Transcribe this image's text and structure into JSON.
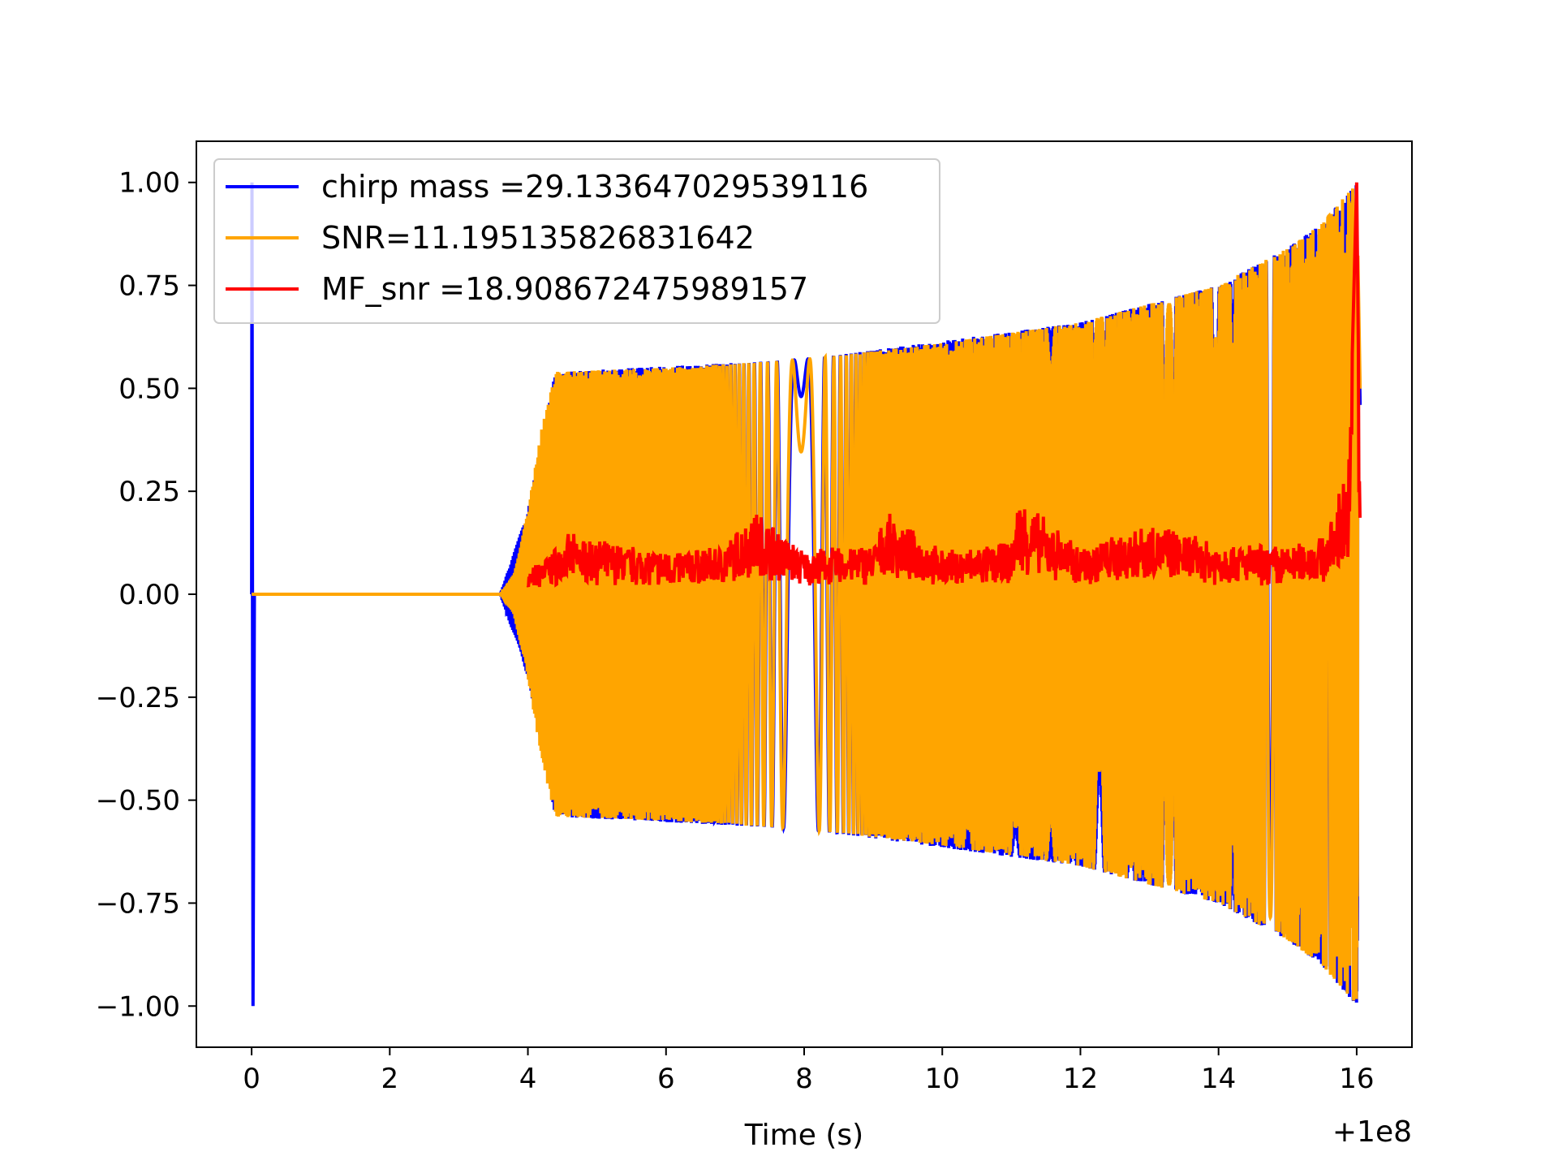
{
  "chart_data": {
    "type": "line",
    "title": "",
    "xlabel": "Time (s)",
    "ylabel": "",
    "x_offset_label": "+1e8",
    "xlim": [
      -0.8,
      16.8
    ],
    "ylim": [
      -1.1,
      1.1
    ],
    "x_ticks": [
      0,
      2,
      4,
      6,
      8,
      10,
      12,
      14,
      16
    ],
    "x_tick_labels": [
      "0",
      "2",
      "4",
      "6",
      "8",
      "10",
      "12",
      "14",
      "16"
    ],
    "y_ticks": [
      1.0,
      0.75,
      0.5,
      0.25,
      0.0,
      -0.25,
      -0.5,
      -0.75,
      -1.0
    ],
    "y_tick_labels": [
      "1.00",
      "0.75",
      "0.50",
      "0.25",
      "0.00",
      "−0.25",
      "−0.50",
      "−0.75",
      "−1.00"
    ],
    "grid": false,
    "legend_placement": "upper-left",
    "series": [
      {
        "name": "chirp mass =29.133647029539116",
        "color": "#0000ff",
        "kind": "chirp-template",
        "note_x": [
          0.0,
          0.02,
          0.04,
          3.6,
          4.0,
          4.4,
          8.0,
          12.0,
          14.0,
          15.0,
          15.5,
          16.0,
          16.05
        ],
        "envelope": [
          1.0,
          1.0,
          0.0,
          0.0,
          0.2,
          0.54,
          0.57,
          0.66,
          0.75,
          0.84,
          0.9,
          1.0,
          0.5
        ]
      },
      {
        "name": "SNR=11.195135826831642",
        "color": "#ffa500",
        "kind": "chirp-signal",
        "x": [
          0.0,
          3.6,
          3.8,
          4.0,
          4.2,
          4.4,
          6.0,
          8.0,
          10.0,
          12.0,
          14.0,
          15.0,
          15.5,
          15.9,
          16.0,
          16.05
        ],
        "envelope": [
          0.0,
          0.0,
          0.05,
          0.2,
          0.4,
          0.54,
          0.55,
          0.57,
          0.61,
          0.66,
          0.75,
          0.84,
          0.9,
          0.98,
          1.0,
          0.5
        ]
      },
      {
        "name": "MF_snr =18.908672475989157",
        "color": "#ff0000",
        "kind": "matched-filter-snr",
        "x": [
          4.0,
          4.6,
          5.2,
          6.0,
          6.8,
          7.3,
          8.0,
          9.0,
          9.2,
          10.0,
          11.0,
          11.1,
          12.0,
          13.0,
          14.0,
          15.0,
          15.6,
          15.9,
          16.0,
          16.05
        ],
        "y": [
          0.05,
          0.14,
          0.12,
          0.1,
          0.11,
          0.2,
          0.1,
          0.12,
          0.19,
          0.1,
          0.12,
          0.23,
          0.11,
          0.17,
          0.12,
          0.11,
          0.15,
          0.35,
          1.0,
          0.18
        ]
      }
    ]
  }
}
